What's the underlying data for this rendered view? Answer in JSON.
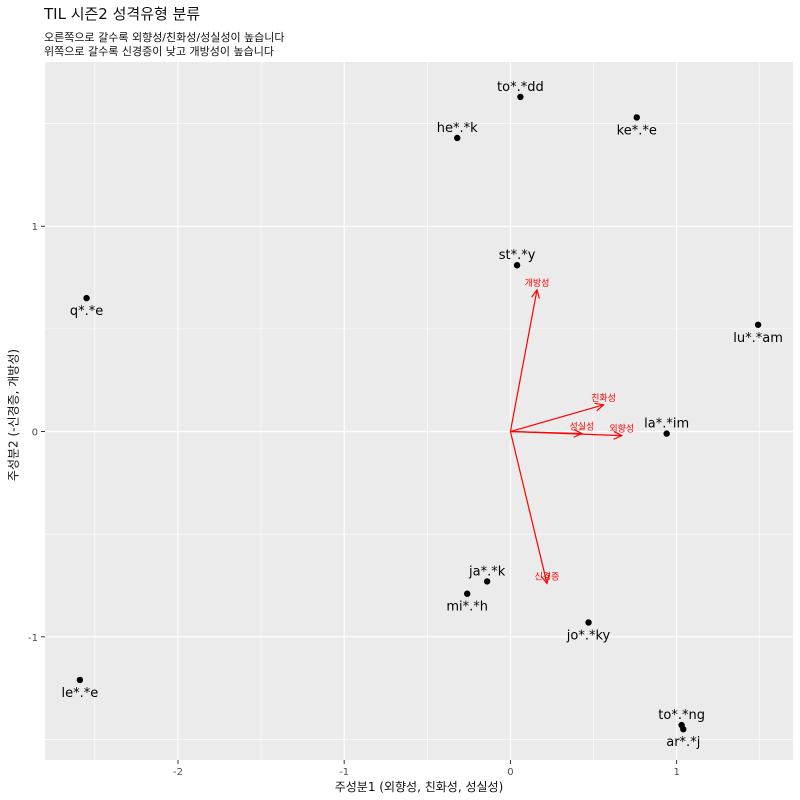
{
  "chart_data": {
    "type": "scatter",
    "title": "TIL 시즌2 성격유형 분류",
    "subtitle_lines": [
      "오른쪽으로 갈수록 외향성/친화성/성실성이 높습니다",
      "위쪽으로 갈수록 신경증이 낮고 개방성이 높습니다"
    ],
    "xlabel": "주성분1 (외향성, 친화성, 성실성)",
    "ylabel": "주성분2 (-신경증, 개방성)",
    "xlim": [
      -2.8,
      1.7
    ],
    "ylim": [
      -1.6,
      1.8
    ],
    "x_ticks": [
      -2,
      -1,
      0,
      1
    ],
    "y_ticks": [
      -1,
      0,
      1
    ],
    "grid": true,
    "points": [
      {
        "label": "to*.*dd",
        "x": 0.06,
        "y": 1.63,
        "pos": "above"
      },
      {
        "label": "ke*.*e",
        "x": 0.76,
        "y": 1.53,
        "pos": "below"
      },
      {
        "label": "he*.*k",
        "x": -0.32,
        "y": 1.43,
        "pos": "above"
      },
      {
        "label": "st*.*y",
        "x": 0.04,
        "y": 0.81,
        "pos": "above"
      },
      {
        "label": "q*.*e",
        "x": -2.55,
        "y": 0.65,
        "pos": "below"
      },
      {
        "label": "lu*.*am",
        "x": 1.49,
        "y": 0.52,
        "pos": "below"
      },
      {
        "label": "la*.*im",
        "x": 0.94,
        "y": -0.01,
        "pos": "above"
      },
      {
        "label": "ja*.*k",
        "x": -0.14,
        "y": -0.73,
        "pos": "above"
      },
      {
        "label": "mi*.*h",
        "x": -0.26,
        "y": -0.79,
        "pos": "below"
      },
      {
        "label": "jo*.*ky",
        "x": 0.47,
        "y": -0.93,
        "pos": "below"
      },
      {
        "label": "le*.*e",
        "x": -2.59,
        "y": -1.21,
        "pos": "below"
      },
      {
        "label": "to*.*ng",
        "x": 1.03,
        "y": -1.43,
        "pos": "above"
      },
      {
        "label": "ar*.*j",
        "x": 1.04,
        "y": -1.45,
        "pos": "below"
      }
    ],
    "loadings": [
      {
        "label": "개방성",
        "x": 0.16,
        "y": 0.69
      },
      {
        "label": "친화성",
        "x": 0.56,
        "y": 0.13
      },
      {
        "label": "성실성",
        "x": 0.43,
        "y": -0.01
      },
      {
        "label": "외향성",
        "x": 0.67,
        "y": -0.02
      },
      {
        "label": "신경증",
        "x": 0.22,
        "y": -0.74
      }
    ],
    "colors": {
      "panel": "#ebebeb",
      "grid_major": "#ffffff",
      "points": "#000000",
      "loadings": "#ff0000"
    }
  }
}
